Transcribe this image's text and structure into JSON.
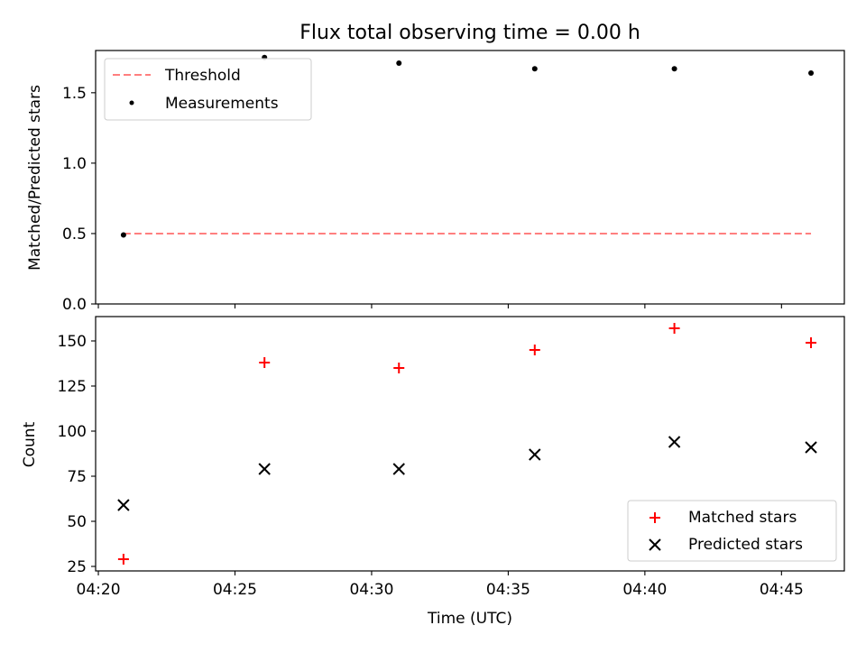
{
  "chart_data": {
    "title": "Flux total observing time = 0.00 h",
    "xlabel": "Time (UTC)",
    "x_ticks": [
      "04:20",
      "04:25",
      "04:30",
      "04:35",
      "04:40",
      "04:45"
    ],
    "x_tick_minutes": [
      0,
      5,
      10,
      15,
      20,
      25
    ],
    "x": [
      "04:20:55",
      "04:26:05",
      "04:31:00",
      "04:35:58",
      "04:41:05",
      "04:46:05"
    ],
    "x_minutes": [
      0.92,
      6.08,
      11.0,
      15.97,
      21.08,
      26.08
    ],
    "xlim_minutes": [
      -0.1,
      27.3
    ],
    "top": {
      "type": "scatter",
      "ylabel": "Matched/Predicted stars",
      "ylim": [
        0,
        1.8
      ],
      "y_ticks": [
        "0.0",
        "0.5",
        "1.0",
        "1.5"
      ],
      "y_tick_values": [
        0,
        0.5,
        1.0,
        1.5
      ],
      "threshold": {
        "name": "Threshold",
        "value": 0.5,
        "color": "#ff7f7f"
      },
      "series": [
        {
          "name": "Measurements",
          "color": "#000000",
          "values": [
            0.49,
            1.75,
            1.71,
            1.67,
            1.67,
            1.64
          ]
        }
      ],
      "legend_position": "top-left"
    },
    "bottom": {
      "type": "scatter",
      "ylabel": "Count",
      "ylim": [
        22.5,
        163.5
      ],
      "y_ticks": [
        "25",
        "50",
        "75",
        "100",
        "125",
        "150"
      ],
      "y_tick_values": [
        25,
        50,
        75,
        100,
        125,
        150
      ],
      "series": [
        {
          "name": "Matched stars",
          "marker": "plus",
          "color": "#ff0000",
          "values": [
            29,
            138,
            135,
            145,
            157,
            149
          ]
        },
        {
          "name": "Predicted stars",
          "marker": "x",
          "color": "#000000",
          "values": [
            59,
            79,
            79,
            87,
            94,
            91
          ]
        }
      ],
      "legend_position": "bottom-right"
    }
  }
}
